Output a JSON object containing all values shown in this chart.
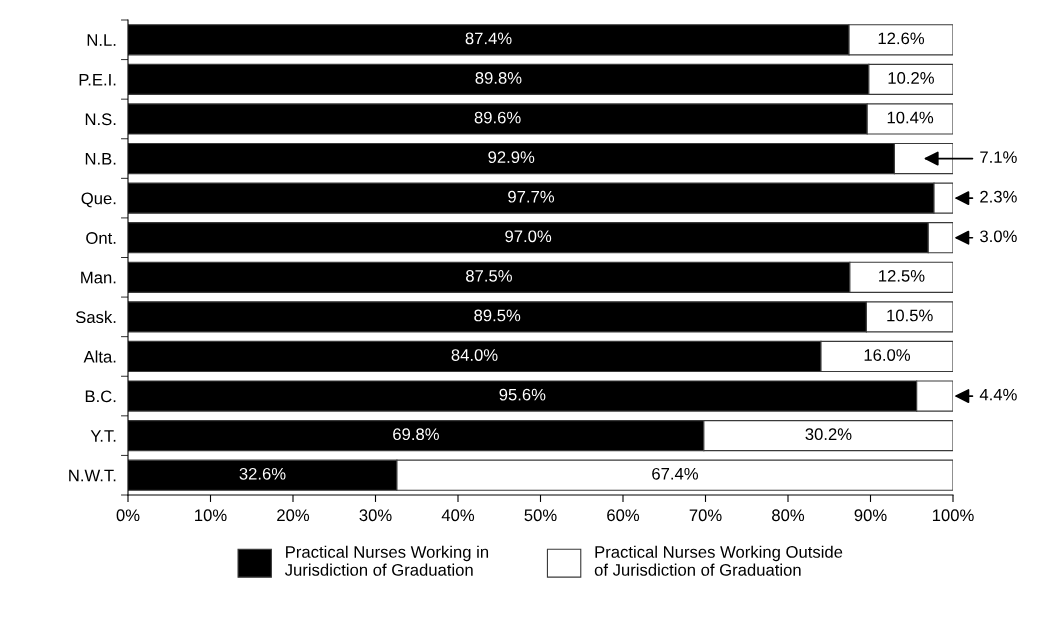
{
  "chart_data": {
    "type": "bar",
    "orientation": "horizontal",
    "stacked": true,
    "categories": [
      "N.L.",
      "P.E.I.",
      "N.S.",
      "N.B.",
      "Que.",
      "Ont.",
      "Man.",
      "Sask.",
      "Alta.",
      "B.C.",
      "Y.T.",
      "N.W.T."
    ],
    "series": [
      {
        "name": "Practical Nurses Working in\nJurisdiction of Graduation",
        "color": "#000000",
        "values": [
          87.4,
          89.8,
          89.6,
          92.9,
          97.7,
          97.0,
          87.5,
          89.5,
          84.0,
          95.6,
          69.8,
          32.6
        ],
        "value_labels": [
          "87.4%",
          "89.8%",
          "89.6%",
          "92.9%",
          "97.7%",
          "97.0%",
          "87.5%",
          "89.5%",
          "84.0%",
          "95.6%",
          "69.8%",
          "32.6%"
        ]
      },
      {
        "name": "Practical Nurses Working Outside\nof Jurisdiction of Graduation",
        "color": "#ffffff",
        "values": [
          12.6,
          10.2,
          10.4,
          7.1,
          2.3,
          3.0,
          12.5,
          10.5,
          16.0,
          4.4,
          30.2,
          67.4
        ],
        "value_labels": [
          "12.6%",
          "10.2%",
          "10.4%",
          "7.1%",
          "2.3%",
          "3.0%",
          "12.5%",
          "10.5%",
          "16.0%",
          "4.4%",
          "30.2%",
          "67.4%"
        ]
      }
    ],
    "xlim": [
      0,
      100
    ],
    "xticks": [
      {
        "value": 0,
        "label": "0%"
      },
      {
        "value": 10,
        "label": "10%"
      },
      {
        "value": 20,
        "label": "20%"
      },
      {
        "value": 30,
        "label": "30%"
      },
      {
        "value": 40,
        "label": "40%"
      },
      {
        "value": 50,
        "label": "50%"
      },
      {
        "value": 60,
        "label": "60%"
      },
      {
        "value": 70,
        "label": "70%"
      },
      {
        "value": 80,
        "label": "80%"
      },
      {
        "value": 90,
        "label": "90%"
      },
      {
        "value": 100,
        "label": "100%"
      }
    ],
    "legend": "bottom"
  }
}
